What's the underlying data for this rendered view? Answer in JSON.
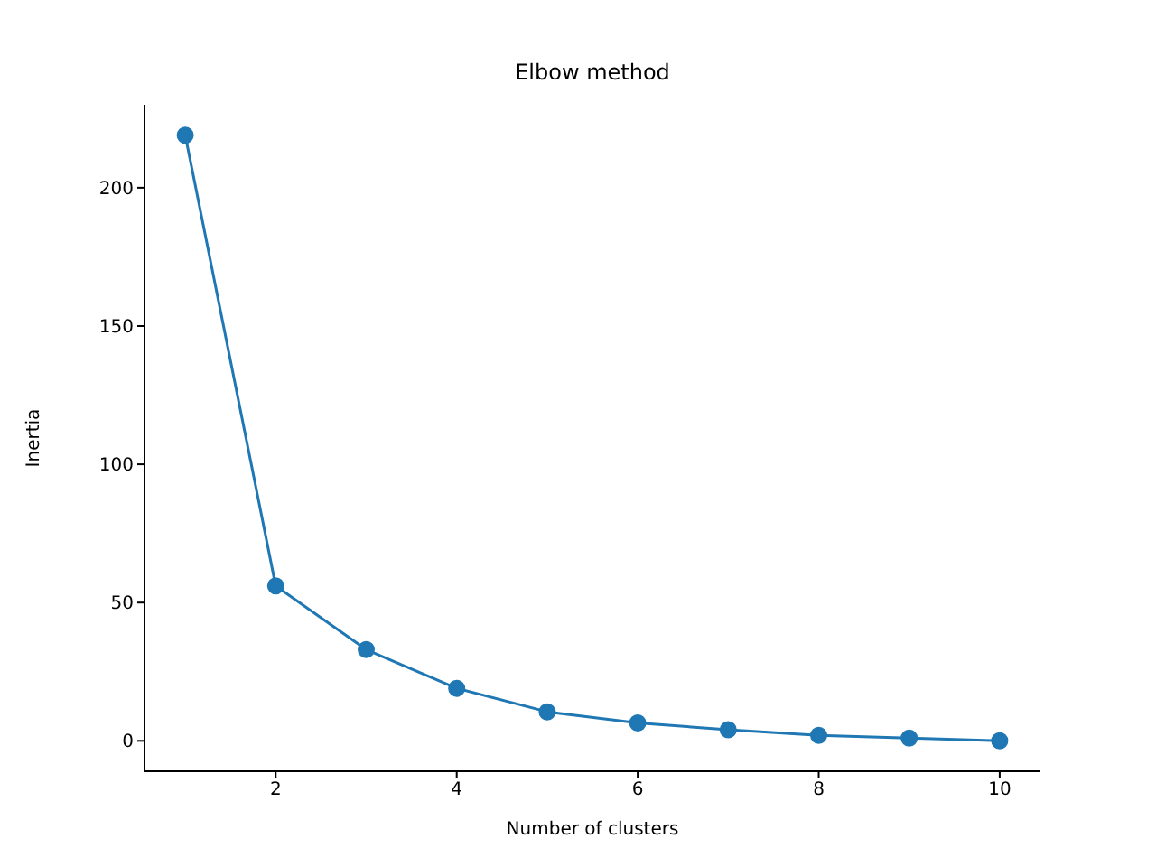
{
  "chart_data": {
    "type": "line",
    "title": "Elbow method",
    "xlabel": "Number of clusters",
    "ylabel": "Inertia",
    "x": [
      1,
      2,
      3,
      4,
      5,
      6,
      7,
      8,
      9,
      10
    ],
    "series": [
      {
        "color": "#1f77b4",
        "values": [
          219,
          56,
          33,
          19,
          10.5,
          6.5,
          4,
          2,
          1,
          0
        ]
      }
    ],
    "xlim": [
      0.55,
      10.45
    ],
    "xticks": [
      2,
      4,
      6,
      8,
      10
    ],
    "ylim": [
      -11,
      230
    ],
    "yticks": [
      0,
      50,
      100,
      150,
      200
    ],
    "marker": "circle",
    "line_style": "solid",
    "grid": false,
    "legend": false
  }
}
